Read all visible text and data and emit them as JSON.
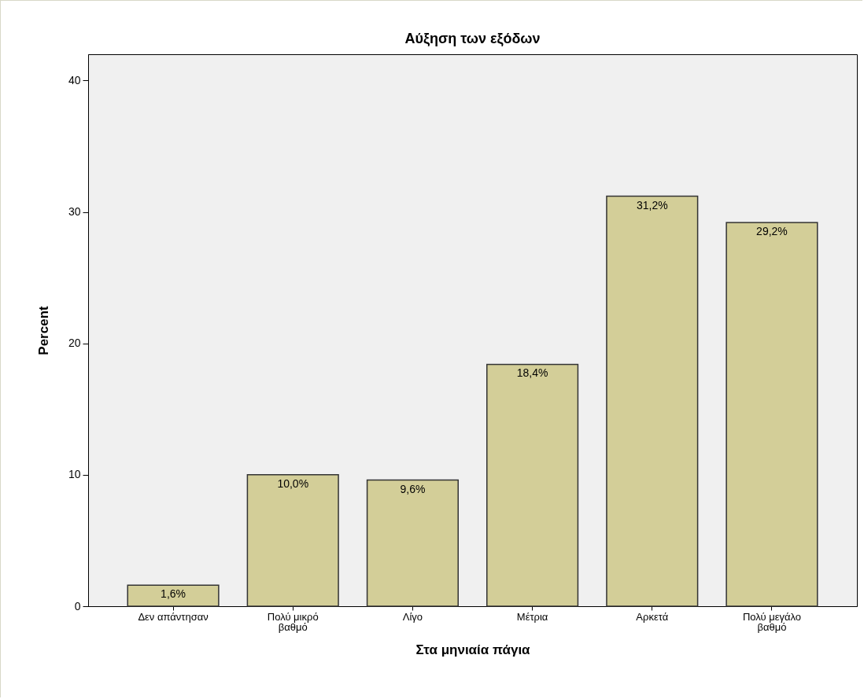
{
  "chart_data": {
    "type": "bar",
    "title": "Αύξηση των εξόδων",
    "xlabel": "Στα μηνιαία πάγια",
    "ylabel": "Percent",
    "categories": [
      "Δεν απάντησαν",
      "Πολύ μικρό βαθμό",
      "Λίγο",
      "Μέτρια",
      "Αρκετά",
      "Πολύ μεγάλο βαθμό"
    ],
    "values": [
      1.6,
      10.0,
      9.6,
      18.4,
      31.2,
      29.2
    ],
    "value_labels": [
      "1,6%",
      "10,0%",
      "9,6%",
      "18,4%",
      "31,2%",
      "29,2%"
    ],
    "color": "#d3ce98",
    "ylim": [
      0,
      42
    ],
    "yticks": [
      0,
      10,
      20,
      30,
      40
    ]
  }
}
